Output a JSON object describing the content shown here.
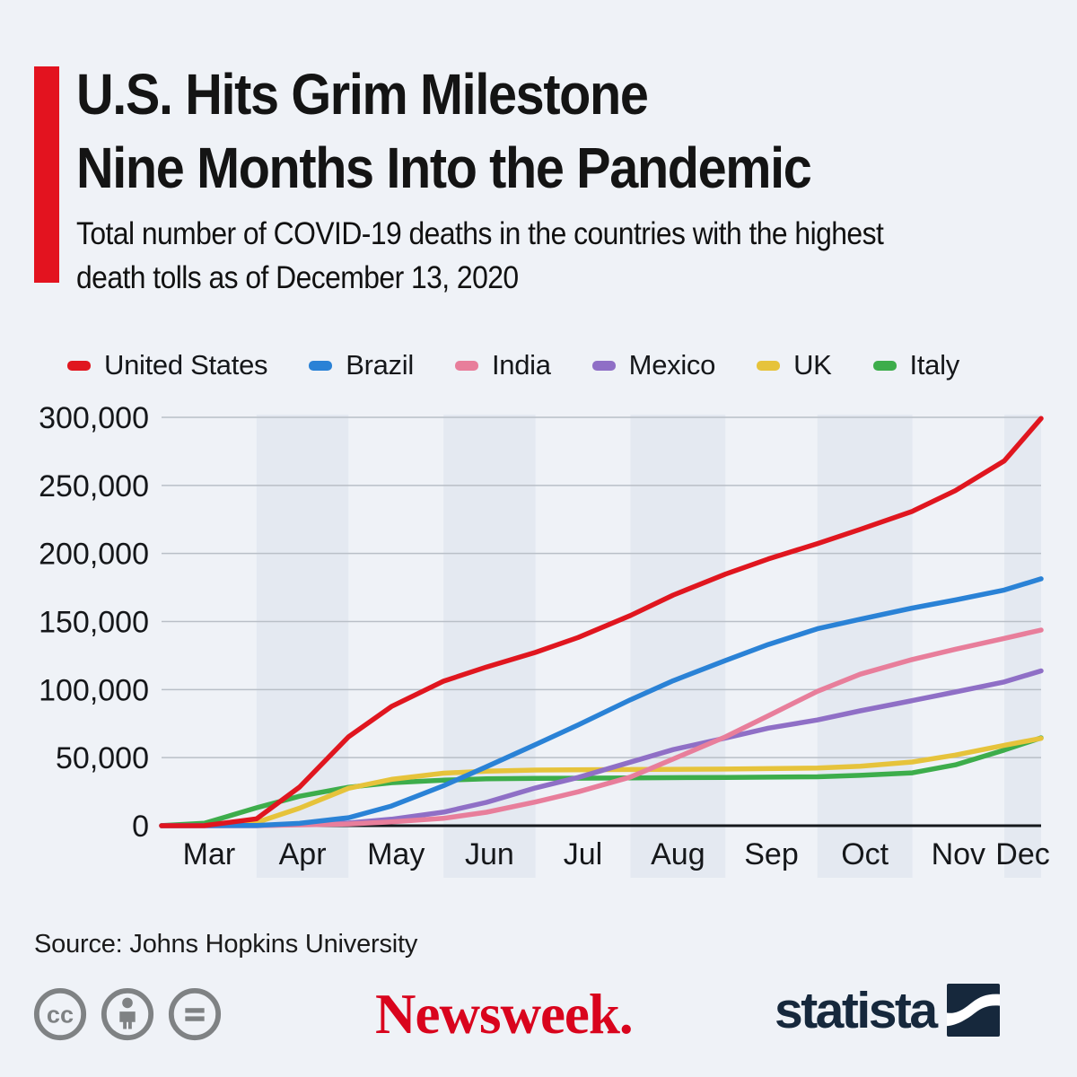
{
  "header": {
    "title_line1": "U.S. Hits Grim Milestone",
    "title_line2": "Nine Months Into the Pandemic",
    "subtitle_line1": "Total number of COVID-19 deaths in the countries with the highest",
    "subtitle_line2": "death tolls as of December 13, 2020"
  },
  "colors": {
    "background": "#eff2f7",
    "accent_red": "#e3131f",
    "month_band": "#e4e9f1",
    "gridline": "#b9bfc7",
    "axis": "#15181c",
    "text_primary": "#15171a",
    "newsweek_red": "#d9041d",
    "statista_navy": "#16283c",
    "cc_gray": "#7f8284"
  },
  "chart_data": {
    "type": "line",
    "title": "Total number of COVID-19 deaths by country, Mar 1 - Dec 13, 2020",
    "xlabel": "",
    "ylabel": "",
    "ylim": [
      0,
      300000
    ],
    "grid": "horizontal",
    "legend_position": "top",
    "x_total_days": 287,
    "yticks": [
      {
        "value": 0,
        "label": "0"
      },
      {
        "value": 50000,
        "label": "50,000"
      },
      {
        "value": 100000,
        "label": "100,000"
      },
      {
        "value": 150000,
        "label": "150,000"
      },
      {
        "value": 200000,
        "label": "200,000"
      },
      {
        "value": 250000,
        "label": "250,000"
      },
      {
        "value": 300000,
        "label": "300,000"
      }
    ],
    "months": [
      {
        "label": "Mar",
        "start": 0,
        "end": 31,
        "shaded": false
      },
      {
        "label": "Apr",
        "start": 31,
        "end": 61,
        "shaded": true
      },
      {
        "label": "May",
        "start": 61,
        "end": 92,
        "shaded": false
      },
      {
        "label": "Jun",
        "start": 92,
        "end": 122,
        "shaded": true
      },
      {
        "label": "Jul",
        "start": 122,
        "end": 153,
        "shaded": false
      },
      {
        "label": "Aug",
        "start": 153,
        "end": 184,
        "shaded": true
      },
      {
        "label": "Sep",
        "start": 184,
        "end": 214,
        "shaded": false
      },
      {
        "label": "Oct",
        "start": 214,
        "end": 245,
        "shaded": true
      },
      {
        "label": "Nov",
        "start": 245,
        "end": 275,
        "shaded": false
      },
      {
        "label": "Dec",
        "start": 275,
        "end": 287,
        "shaded": true
      }
    ],
    "series": [
      {
        "name": "United States",
        "color": "#e0161f",
        "points": [
          [
            0,
            2
          ],
          [
            14,
            68
          ],
          [
            31,
            5102
          ],
          [
            45,
            28326
          ],
          [
            61,
            65307
          ],
          [
            75,
            87530
          ],
          [
            92,
            106180
          ],
          [
            106,
            116567
          ],
          [
            122,
            127322
          ],
          [
            136,
            138358
          ],
          [
            153,
            154447
          ],
          [
            167,
            169481
          ],
          [
            184,
            184805
          ],
          [
            198,
            195961
          ],
          [
            214,
            207199
          ],
          [
            228,
            217717
          ],
          [
            245,
            230995
          ],
          [
            259,
            246108
          ],
          [
            275,
            268045
          ],
          [
            287,
            299177
          ]
        ]
      },
      {
        "name": "Brazil",
        "color": "#2a82d6",
        "points": [
          [
            0,
            0
          ],
          [
            31,
            201
          ],
          [
            45,
            1736
          ],
          [
            61,
            5901
          ],
          [
            75,
            14455
          ],
          [
            92,
            29314
          ],
          [
            106,
            43332
          ],
          [
            122,
            59594
          ],
          [
            136,
            74133
          ],
          [
            153,
            92475
          ],
          [
            167,
            106523
          ],
          [
            184,
            121381
          ],
          [
            198,
            133119
          ],
          [
            214,
            144680
          ],
          [
            228,
            151747
          ],
          [
            245,
            159902
          ],
          [
            259,
            165798
          ],
          [
            275,
            173120
          ],
          [
            287,
            181402
          ]
        ]
      },
      {
        "name": "India",
        "color": "#e87e9b",
        "points": [
          [
            0,
            0
          ],
          [
            31,
            58
          ],
          [
            61,
            1223
          ],
          [
            75,
            2753
          ],
          [
            92,
            5408
          ],
          [
            106,
            9915
          ],
          [
            122,
            17400
          ],
          [
            136,
            24915
          ],
          [
            153,
            35747
          ],
          [
            167,
            49036
          ],
          [
            184,
            65288
          ],
          [
            198,
            80776
          ],
          [
            214,
            98678
          ],
          [
            228,
            111266
          ],
          [
            245,
            122111
          ],
          [
            259,
            129635
          ],
          [
            275,
            137621
          ],
          [
            287,
            143709
          ]
        ]
      },
      {
        "name": "Mexico",
        "color": "#8f6fc6",
        "points": [
          [
            0,
            0
          ],
          [
            31,
            29
          ],
          [
            61,
            1972
          ],
          [
            75,
            4767
          ],
          [
            92,
            9930
          ],
          [
            106,
            17141
          ],
          [
            122,
            27769
          ],
          [
            136,
            35491
          ],
          [
            153,
            46688
          ],
          [
            167,
            55908
          ],
          [
            184,
            64414
          ],
          [
            198,
            71678
          ],
          [
            214,
            77646
          ],
          [
            228,
            84420
          ],
          [
            245,
            91895
          ],
          [
            259,
            98259
          ],
          [
            275,
            105655
          ],
          [
            287,
            113704
          ]
        ]
      },
      {
        "name": "UK",
        "color": "#e6c33b",
        "points": [
          [
            0,
            0
          ],
          [
            14,
            35
          ],
          [
            31,
            2352
          ],
          [
            45,
            12868
          ],
          [
            61,
            27510
          ],
          [
            75,
            33998
          ],
          [
            92,
            38600
          ],
          [
            106,
            40100
          ],
          [
            122,
            40900
          ],
          [
            153,
            41300
          ],
          [
            184,
            41600
          ],
          [
            214,
            42400
          ],
          [
            228,
            43700
          ],
          [
            245,
            46800
          ],
          [
            259,
            51900
          ],
          [
            275,
            59100
          ],
          [
            287,
            64170
          ]
        ]
      },
      {
        "name": "Italy",
        "color": "#3dad4b",
        "points": [
          [
            0,
            34
          ],
          [
            14,
            1809
          ],
          [
            31,
            13155
          ],
          [
            45,
            21645
          ],
          [
            61,
            28236
          ],
          [
            75,
            31610
          ],
          [
            92,
            33415
          ],
          [
            106,
            34405
          ],
          [
            122,
            34767
          ],
          [
            153,
            35141
          ],
          [
            184,
            35497
          ],
          [
            214,
            35941
          ],
          [
            228,
            36972
          ],
          [
            245,
            38826
          ],
          [
            259,
            44683
          ],
          [
            275,
            55576
          ],
          [
            287,
            64520
          ]
        ]
      }
    ]
  },
  "footer": {
    "source": "Source: Johns Hopkins University",
    "cc_icons": [
      "cc-license-icon",
      "cc-attribution-icon",
      "cc-no-derivatives-icon"
    ],
    "newsweek_logo_text": "Newsweek.",
    "statista_logo_text": "statista"
  }
}
